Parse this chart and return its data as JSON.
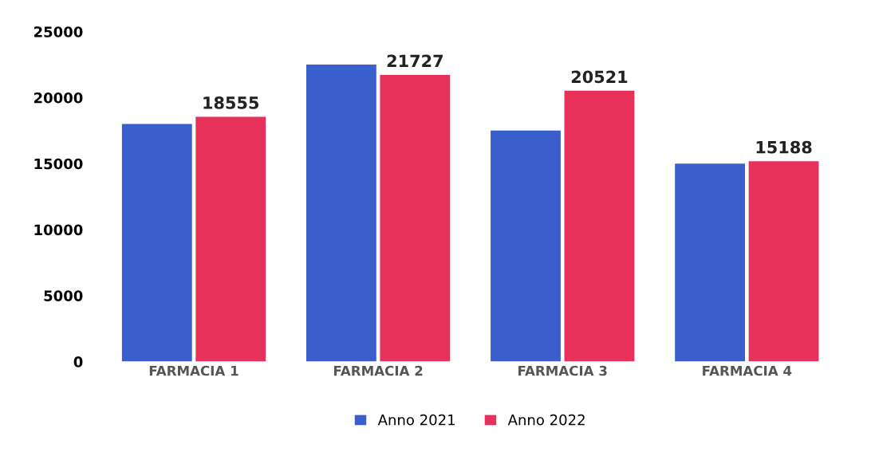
{
  "chart_data": {
    "type": "bar",
    "categories": [
      "FARMACIA 1",
      "FARMACIA 2",
      "FARMACIA 3",
      "FARMACIA 4"
    ],
    "series": [
      {
        "name": "Anno 2021",
        "color": "#3a5fcd",
        "values": [
          18000,
          22500,
          17500,
          15000
        ]
      },
      {
        "name": "Anno 2022",
        "color": "#e8315a",
        "values": [
          18555,
          21727,
          20521,
          15188
        ],
        "value_labels": [
          "18555",
          "21727",
          "20521",
          "15188"
        ]
      }
    ],
    "ylim": [
      0,
      25000
    ],
    "yticks": [
      0,
      5000,
      10000,
      15000,
      20000,
      25000
    ],
    "grid": false,
    "legend": "bottom"
  }
}
